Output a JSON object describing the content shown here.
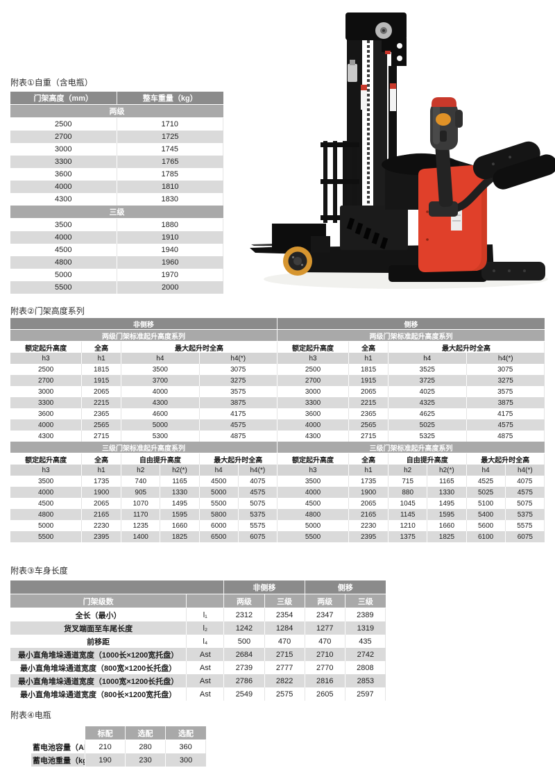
{
  "colors": {
    "header_dark": "#8b8b8b",
    "header_mid": "#a9a9a9",
    "subheader_bg": "#d4d4d4",
    "row_alt": "#dadada",
    "text_dark": "#1c1c1c"
  },
  "photo": {
    "body_red": "#e0402a",
    "wheel_orange": "#d6952f",
    "cap_red": "#c8392b",
    "button_orange": "#e09227"
  },
  "titles": {
    "t1": "附表①自重（含电瓶）",
    "t2": "附表②门架高度系列",
    "t3": "附表③车身长度",
    "t4": "附表④电瓶"
  },
  "tables": {
    "t1": {
      "rows": [
        {
          "s": "hd",
          "c": [
            [
              "门架高度（mm）",
              1
            ],
            [
              "整车重量（kg）",
              1
            ]
          ]
        },
        {
          "s": "hm",
          "c": [
            [
              "两级",
              2
            ]
          ]
        },
        {
          "s": "w",
          "c": [
            "2500",
            "1710"
          ]
        },
        {
          "s": "g",
          "c": [
            "2700",
            "1725"
          ]
        },
        {
          "s": "w",
          "c": [
            "3000",
            "1745"
          ]
        },
        {
          "s": "g",
          "c": [
            "3300",
            "1765"
          ]
        },
        {
          "s": "w",
          "c": [
            "3600",
            "1785"
          ]
        },
        {
          "s": "g",
          "c": [
            "4000",
            "1810"
          ]
        },
        {
          "s": "w",
          "c": [
            "4300",
            "1830"
          ]
        },
        {
          "s": "hm",
          "c": [
            [
              "三级",
              2
            ]
          ]
        },
        {
          "s": "w",
          "c": [
            "3500",
            "1880"
          ]
        },
        {
          "s": "g",
          "c": [
            "4000",
            "1910"
          ]
        },
        {
          "s": "w",
          "c": [
            "4500",
            "1940"
          ]
        },
        {
          "s": "g",
          "c": [
            "4800",
            "1960"
          ]
        },
        {
          "s": "w",
          "c": [
            "5000",
            "1970"
          ]
        },
        {
          "s": "g",
          "c": [
            "5500",
            "2000"
          ]
        }
      ]
    },
    "t2": {
      "rows": [
        {
          "s": "hd",
          "c": [
            [
              "非侧移",
              6
            ],
            [
              "侧移",
              6
            ]
          ]
        },
        {
          "s": "hm",
          "c": [
            [
              "两级门架标准起升高度系列",
              6
            ],
            [
              "两级门架标准起升高度系列",
              6
            ]
          ]
        },
        {
          "s": "bh",
          "c": [
            [
              "额定起升高度",
              1
            ],
            [
              "全高",
              1
            ],
            [
              "最大起升时全高",
              4
            ],
            [
              "额定起升高度",
              1
            ],
            [
              "全高",
              1
            ],
            [
              "最大起升时全高",
              4
            ]
          ]
        },
        {
          "s": "sg",
          "c": [
            "h3",
            "h1",
            [
              "h4",
              2
            ],
            [
              "h4(*)",
              2
            ],
            "h3",
            "h1",
            [
              "h4",
              2
            ],
            [
              "h4(*)",
              2
            ]
          ]
        },
        {
          "s": "w",
          "c": [
            "2500",
            "1815",
            [
              "3500",
              2
            ],
            [
              "3075",
              2
            ],
            "2500",
            "1815",
            [
              "3525",
              2
            ],
            [
              "3075",
              2
            ]
          ]
        },
        {
          "s": "g",
          "c": [
            "2700",
            "1915",
            [
              "3700",
              2
            ],
            [
              "3275",
              2
            ],
            "2700",
            "1915",
            [
              "3725",
              2
            ],
            [
              "3275",
              2
            ]
          ]
        },
        {
          "s": "w",
          "c": [
            "3000",
            "2065",
            [
              "4000",
              2
            ],
            [
              "3575",
              2
            ],
            "3000",
            "2065",
            [
              "4025",
              2
            ],
            [
              "3575",
              2
            ]
          ]
        },
        {
          "s": "g",
          "c": [
            "3300",
            "2215",
            [
              "4300",
              2
            ],
            [
              "3875",
              2
            ],
            "3300",
            "2215",
            [
              "4325",
              2
            ],
            [
              "3875",
              2
            ]
          ]
        },
        {
          "s": "w",
          "c": [
            "3600",
            "2365",
            [
              "4600",
              2
            ],
            [
              "4175",
              2
            ],
            "3600",
            "2365",
            [
              "4625",
              2
            ],
            [
              "4175",
              2
            ]
          ]
        },
        {
          "s": "g",
          "c": [
            "4000",
            "2565",
            [
              "5000",
              2
            ],
            [
              "4575",
              2
            ],
            "4000",
            "2565",
            [
              "5025",
              2
            ],
            [
              "4575",
              2
            ]
          ]
        },
        {
          "s": "w",
          "c": [
            "4300",
            "2715",
            [
              "5300",
              2
            ],
            [
              "4875",
              2
            ],
            "4300",
            "2715",
            [
              "5325",
              2
            ],
            [
              "4875",
              2
            ]
          ]
        },
        {
          "s": "hm",
          "c": [
            [
              "三级门架标准起升高度系列",
              6
            ],
            [
              "三级门架标准起升高度系列",
              6
            ]
          ]
        },
        {
          "s": "bh",
          "c": [
            [
              "额定起升高度",
              1
            ],
            [
              "全高",
              1
            ],
            [
              "自由提升高度",
              2
            ],
            [
              "最大起升时全高",
              2
            ],
            [
              "额定起升高度",
              1
            ],
            [
              "全高",
              1
            ],
            [
              "自由提升高度",
              2
            ],
            [
              "最大起升时全高",
              2
            ]
          ]
        },
        {
          "s": "sg",
          "c": [
            "h3",
            "h1",
            "h2",
            "h2(*)",
            "h4",
            "h4(*)",
            "h3",
            "h1",
            "h2",
            "h2(*)",
            "h4",
            "h4(*)"
          ]
        },
        {
          "s": "w",
          "c": [
            "3500",
            "1735",
            "740",
            "1165",
            "4500",
            "4075",
            "3500",
            "1735",
            "715",
            "1165",
            "4525",
            "4075"
          ]
        },
        {
          "s": "g",
          "c": [
            "4000",
            "1900",
            "905",
            "1330",
            "5000",
            "4575",
            "4000",
            "1900",
            "880",
            "1330",
            "5025",
            "4575"
          ]
        },
        {
          "s": "w",
          "c": [
            "4500",
            "2065",
            "1070",
            "1495",
            "5500",
            "5075",
            "4500",
            "2065",
            "1045",
            "1495",
            "5100",
            "5075"
          ]
        },
        {
          "s": "g",
          "c": [
            "4800",
            "2165",
            "1170",
            "1595",
            "5800",
            "5375",
            "4800",
            "2165",
            "1145",
            "1595",
            "5400",
            "5375"
          ]
        },
        {
          "s": "w",
          "c": [
            "5000",
            "2230",
            "1235",
            "1660",
            "6000",
            "5575",
            "5000",
            "2230",
            "1210",
            "1660",
            "5600",
            "5575"
          ]
        },
        {
          "s": "g",
          "c": [
            "5500",
            "2395",
            "1400",
            "1825",
            "6500",
            "6075",
            "5500",
            "2395",
            "1375",
            "1825",
            "6100",
            "6075"
          ]
        }
      ]
    },
    "t3": {
      "rows": [
        {
          "s": "hd",
          "c": [
            [
              "",
              2
            ],
            [
              "非侧移",
              2
            ],
            [
              "侧移",
              2
            ]
          ]
        },
        {
          "s": "hm",
          "c": [
            [
              "门架级数",
              1
            ],
            [
              "",
              1
            ],
            [
              "两级",
              1
            ],
            [
              "三级",
              1
            ],
            [
              "两级",
              1
            ],
            [
              "三级",
              1
            ]
          ]
        },
        {
          "s": "w",
          "c": [
            "全长（最小）",
            "l₁",
            "2312",
            "2354",
            "2347",
            "2389"
          ]
        },
        {
          "s": "g",
          "c": [
            "货叉端面至车尾长度",
            "l₂",
            "1242",
            "1284",
            "1277",
            "1319"
          ]
        },
        {
          "s": "w",
          "c": [
            "前移距",
            "l₄",
            "500",
            "470",
            "470",
            "435"
          ]
        },
        {
          "s": "g",
          "c": [
            "最小直角堆垛通道宽度（1000长×1200宽托盘）",
            "Ast",
            "2684",
            "2715",
            "2710",
            "2742"
          ]
        },
        {
          "s": "w",
          "c": [
            "最小直角堆垛通道宽度（800宽×1200长托盘）",
            "Ast",
            "2739",
            "2777",
            "2770",
            "2808"
          ]
        },
        {
          "s": "g",
          "c": [
            "最小直角堆垛通道宽度（1000宽×1200长托盘）",
            "Ast",
            "2786",
            "2822",
            "2816",
            "2853"
          ]
        },
        {
          "s": "w",
          "c": [
            "最小直角堆垛通道宽度（800长×1200宽托盘）",
            "Ast",
            "2549",
            "2575",
            "2605",
            "2597"
          ]
        }
      ]
    },
    "t4": {
      "rows": [
        {
          "s": "hm",
          "c": [
            [
              "",
              1,
              "bl"
            ],
            [
              "标配",
              1
            ],
            [
              "选配",
              1
            ],
            [
              "选配",
              1
            ]
          ]
        },
        {
          "s": "w",
          "c": [
            "蓄电池容量（Ah）",
            "210",
            "280",
            "360"
          ]
        },
        {
          "s": "g",
          "c": [
            "蓄电池重量（kg）",
            "190",
            "230",
            "300"
          ]
        }
      ]
    }
  }
}
